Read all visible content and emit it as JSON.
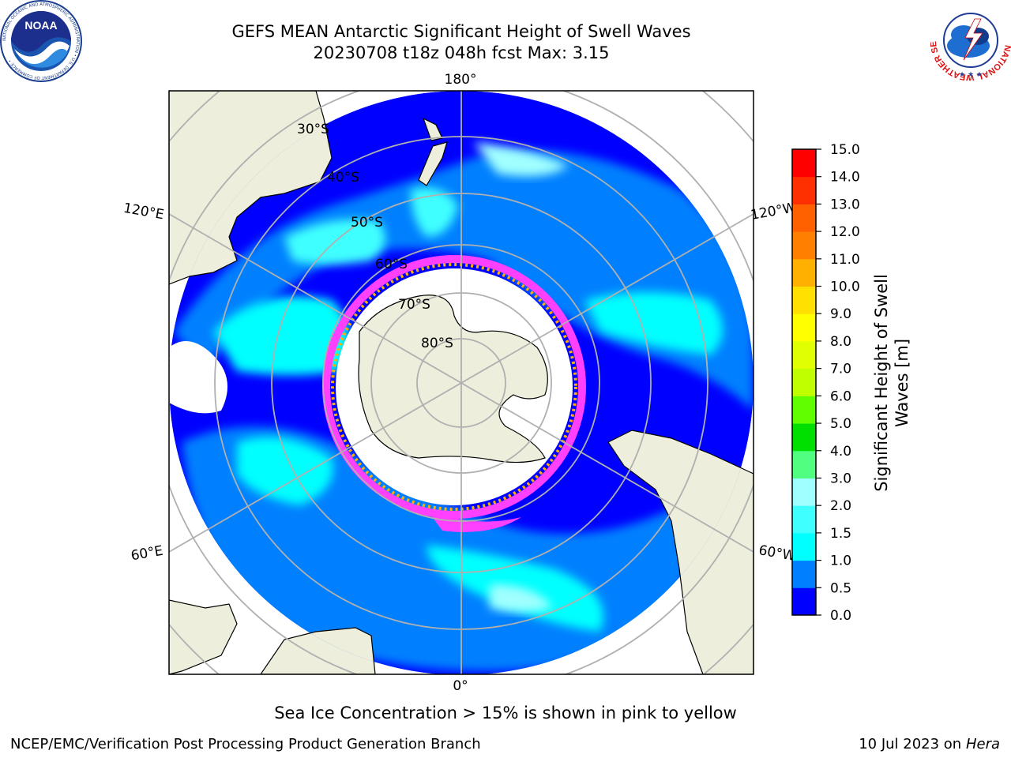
{
  "header": {
    "title": "GEFS MEAN Antarctic Significant Height of Swell Waves",
    "subtitle": "20230708 t18z 048h fcst   Max: 3.15"
  },
  "map": {
    "projection": "south-polar-stereographic",
    "longitude_labels": [
      "180°",
      "120°E",
      "120°W",
      "60°E",
      "60°W",
      "0°"
    ],
    "latitude_labels": [
      "30°S",
      "40°S",
      "50°S",
      "60°S",
      "70°S",
      "80°S"
    ]
  },
  "colorbar": {
    "label_line1": "Significant Height of Swell",
    "label_line2": "Waves [m]",
    "ticks": [
      "15.0",
      "14.0",
      "13.0",
      "12.0",
      "11.0",
      "10.0",
      "9.0",
      "8.0",
      "7.0",
      "6.0",
      "5.0",
      "4.0",
      "3.0",
      "2.0",
      "1.5",
      "1.0",
      "0.5",
      "0.0"
    ],
    "colors": [
      "#0000ff",
      "#0080ff",
      "#00ffff",
      "#40ffff",
      "#a0ffff",
      "#50ff80",
      "#00e000",
      "#60ff00",
      "#c0ff00",
      "#e0ff00",
      "#ffff00",
      "#ffe000",
      "#ffb000",
      "#ff8000",
      "#ff6000",
      "#ff3000",
      "#ff0000"
    ]
  },
  "footer": {
    "caption": "Sea Ice Concentration > 15% is shown in pink to yellow",
    "credit": "NCEP/EMC/Verification Post Processing Product Generation Branch",
    "date_prefix": "10 Jul 2023 on ",
    "date_host": "Hera"
  },
  "logos": {
    "left": "NOAA",
    "left_ring": "NATIONAL OCEANIC AND ATMOSPHERIC ADMINISTRATION • U.S. DEPARTMENT OF COMMERCE •",
    "right_ring": "NATIONAL WEATHER SERVICE"
  }
}
